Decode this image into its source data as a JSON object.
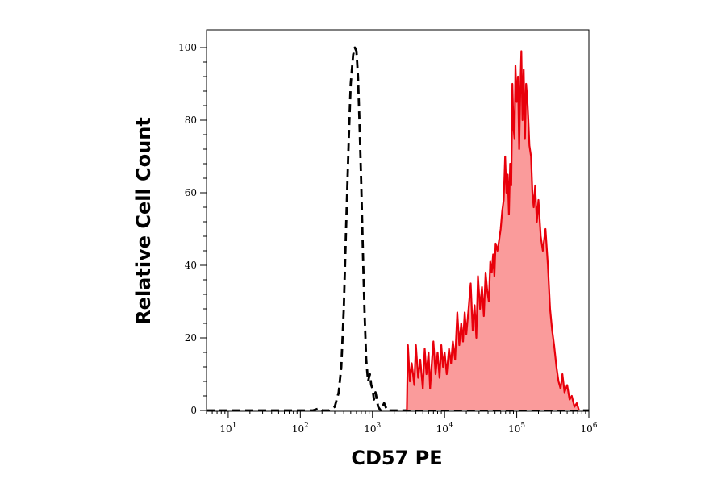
{
  "chart_data": {
    "type": "area",
    "xlabel": "CD57 PE",
    "ylabel": "Relative Cell Count",
    "x_scale": "log",
    "xlim": [
      5,
      1000000
    ],
    "ylim": [
      0,
      100
    ],
    "x_ticks": [
      {
        "base": "10",
        "exp": "1"
      },
      {
        "base": "10",
        "exp": "2"
      },
      {
        "base": "10",
        "exp": "3"
      },
      {
        "base": "10",
        "exp": "4"
      },
      {
        "base": "10",
        "exp": "5"
      },
      {
        "base": "10",
        "exp": "6"
      }
    ],
    "y_ticks": [
      "0",
      "20",
      "40",
      "60",
      "80",
      "100"
    ],
    "grid": false,
    "series": [
      {
        "style": "dashed",
        "color": "#000000",
        "fill": "none",
        "points": [
          [
            5,
            0
          ],
          [
            150,
            0
          ],
          [
            185,
            0.6
          ],
          [
            205,
            0
          ],
          [
            250,
            0
          ],
          [
            300,
            1
          ],
          [
            340,
            5
          ],
          [
            370,
            12
          ],
          [
            400,
            28
          ],
          [
            430,
            50
          ],
          [
            470,
            75
          ],
          [
            500,
            90
          ],
          [
            540,
            98
          ],
          [
            570,
            100
          ],
          [
            600,
            99
          ],
          [
            630,
            92
          ],
          [
            660,
            80
          ],
          [
            700,
            62
          ],
          [
            740,
            42
          ],
          [
            780,
            26
          ],
          [
            820,
            14
          ],
          [
            870,
            8
          ],
          [
            920,
            10
          ],
          [
            960,
            7
          ],
          [
            1000,
            6
          ],
          [
            1050,
            3
          ],
          [
            1100,
            5
          ],
          [
            1150,
            3
          ],
          [
            1200,
            1
          ],
          [
            1300,
            0
          ],
          [
            1450,
            2
          ],
          [
            1600,
            0
          ],
          [
            1000000,
            0
          ]
        ]
      },
      {
        "style": "solid",
        "color": "#e8000b",
        "fill": "#fa9b9b",
        "points": [
          [
            3000,
            0
          ],
          [
            3100,
            18
          ],
          [
            3300,
            8
          ],
          [
            3500,
            13
          ],
          [
            3800,
            7
          ],
          [
            4000,
            18
          ],
          [
            4300,
            9
          ],
          [
            4600,
            14
          ],
          [
            5000,
            6
          ],
          [
            5300,
            17
          ],
          [
            5600,
            10
          ],
          [
            6000,
            16
          ],
          [
            6300,
            6
          ],
          [
            6700,
            14
          ],
          [
            7000,
            19
          ],
          [
            7500,
            10
          ],
          [
            8000,
            16
          ],
          [
            8500,
            9
          ],
          [
            9000,
            18
          ],
          [
            9500,
            12
          ],
          [
            10000,
            16
          ],
          [
            10700,
            10
          ],
          [
            11500,
            17
          ],
          [
            12300,
            13
          ],
          [
            13000,
            19
          ],
          [
            14000,
            14
          ],
          [
            15000,
            27
          ],
          [
            16000,
            18
          ],
          [
            17000,
            24
          ],
          [
            18000,
            19
          ],
          [
            19000,
            27
          ],
          [
            20000,
            21
          ],
          [
            21500,
            28
          ],
          [
            23000,
            35
          ],
          [
            24500,
            22
          ],
          [
            26000,
            29
          ],
          [
            27500,
            20
          ],
          [
            29000,
            37
          ],
          [
            31000,
            28
          ],
          [
            33000,
            34
          ],
          [
            35000,
            26
          ],
          [
            37000,
            38
          ],
          [
            39000,
            33
          ],
          [
            41000,
            30
          ],
          [
            43000,
            41
          ],
          [
            45000,
            38
          ],
          [
            47000,
            43
          ],
          [
            49000,
            37
          ],
          [
            51000,
            46
          ],
          [
            54000,
            44
          ],
          [
            57000,
            47
          ],
          [
            60000,
            50
          ],
          [
            63000,
            55
          ],
          [
            66000,
            58
          ],
          [
            69000,
            70
          ],
          [
            72000,
            60
          ],
          [
            75000,
            65
          ],
          [
            78000,
            54
          ],
          [
            81000,
            68
          ],
          [
            84000,
            62
          ],
          [
            87000,
            90
          ],
          [
            90000,
            78
          ],
          [
            93000,
            75
          ],
          [
            96000,
            95
          ],
          [
            100000,
            85
          ],
          [
            104000,
            92
          ],
          [
            108000,
            72
          ],
          [
            112000,
            88
          ],
          [
            116000,
            99
          ],
          [
            120000,
            80
          ],
          [
            125000,
            94
          ],
          [
            130000,
            75
          ],
          [
            135000,
            90
          ],
          [
            140000,
            86
          ],
          [
            145000,
            80
          ],
          [
            150000,
            73
          ],
          [
            158000,
            70
          ],
          [
            165000,
            60
          ],
          [
            172000,
            56
          ],
          [
            180000,
            62
          ],
          [
            190000,
            52
          ],
          [
            200000,
            58
          ],
          [
            215000,
            48
          ],
          [
            230000,
            44
          ],
          [
            250000,
            50
          ],
          [
            270000,
            40
          ],
          [
            290000,
            28
          ],
          [
            310000,
            22
          ],
          [
            330000,
            18
          ],
          [
            355000,
            12
          ],
          [
            380000,
            8
          ],
          [
            405000,
            6
          ],
          [
            430000,
            10
          ],
          [
            460000,
            5
          ],
          [
            500000,
            7
          ],
          [
            540000,
            3
          ],
          [
            580000,
            4
          ],
          [
            630000,
            1
          ],
          [
            680000,
            2
          ],
          [
            730000,
            0
          ]
        ]
      }
    ]
  }
}
